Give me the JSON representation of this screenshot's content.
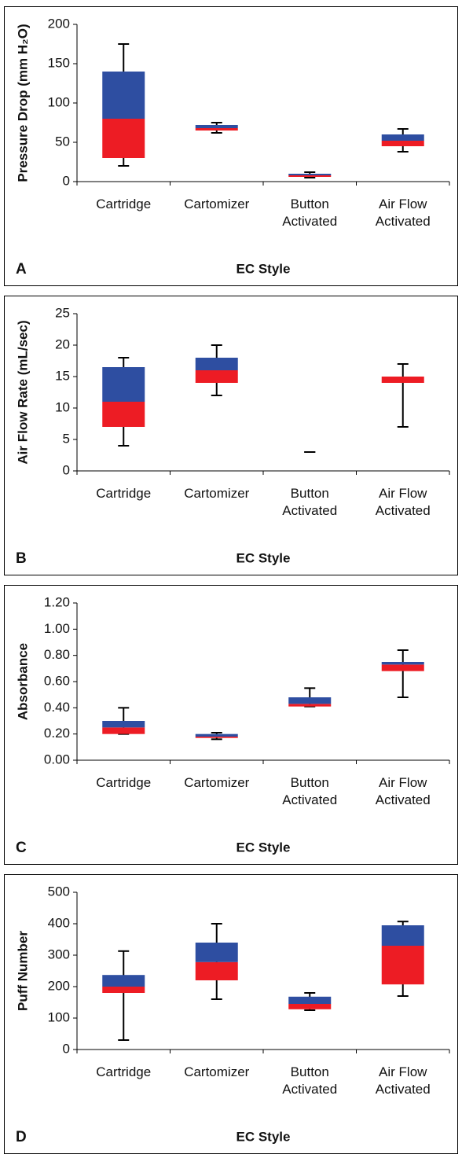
{
  "chart_data": [
    {
      "type": "box",
      "panel": "A",
      "ylabel": "Pressure Drop (mm H₂O)",
      "xlabel": "EC Style",
      "categories": [
        "Cartridge",
        "Cartomizer",
        "Button Activated",
        "Air Flow Activated"
      ],
      "min": [
        20,
        62,
        5,
        38
      ],
      "q1": [
        30,
        65,
        6,
        45
      ],
      "median": [
        80,
        68,
        8,
        52
      ],
      "q3": [
        140,
        72,
        10,
        60
      ],
      "max": [
        175,
        75,
        12,
        67
      ],
      "lower_color": "#ed1c24",
      "upper_color": "#2e4ea1",
      "ylim": [
        0,
        200
      ],
      "yticks": [
        0,
        50,
        100,
        150,
        200
      ]
    },
    {
      "type": "box",
      "panel": "B",
      "ylabel": "Air Flow Rate (mL/sec)",
      "xlabel": "EC Style",
      "categories": [
        "Cartridge",
        "Cartomizer",
        "Button Activated",
        "Air Flow Activated"
      ],
      "min": [
        4,
        12,
        3,
        7
      ],
      "q1": [
        7,
        14,
        3,
        14
      ],
      "median": [
        11,
        16,
        3,
        15
      ],
      "q3": [
        16.5,
        18,
        3,
        15
      ],
      "max": [
        18,
        20,
        3,
        17
      ],
      "lower_color": "#ed1c24",
      "upper_color": "#2e4ea1",
      "ylim": [
        0,
        25
      ],
      "yticks": [
        0,
        5,
        10,
        15,
        20,
        25
      ]
    },
    {
      "type": "box",
      "panel": "C",
      "ylabel": "Absorbance",
      "xlabel": "EC Style",
      "categories": [
        "Cartridge",
        "Cartomizer",
        "Button Activated",
        "Air Flow Activated"
      ],
      "min": [
        0.2,
        0.16,
        0.41,
        0.48
      ],
      "q1": [
        0.2,
        0.17,
        0.41,
        0.68
      ],
      "median": [
        0.25,
        0.18,
        0.43,
        0.73
      ],
      "q3": [
        0.3,
        0.2,
        0.48,
        0.75
      ],
      "max": [
        0.4,
        0.21,
        0.55,
        0.84
      ],
      "lower_color": "#ed1c24",
      "upper_color": "#2e4ea1",
      "ylim": [
        0,
        1.2
      ],
      "yticks": [
        {
          "value": 0,
          "label": "0.00"
        },
        {
          "value": 0.2,
          "label": "0.20"
        },
        {
          "value": 0.4,
          "label": "0.40"
        },
        {
          "value": 0.6,
          "label": "0.60"
        },
        {
          "value": 0.8,
          "label": "0.80"
        },
        {
          "value": 1,
          "label": "1.00"
        },
        {
          "value": 1.2,
          "label": "1.20"
        }
      ]
    },
    {
      "type": "box",
      "panel": "D",
      "ylabel": "Puff Number",
      "xlabel": "EC Style",
      "categories": [
        "Cartridge",
        "Cartomizer",
        "Button Activated",
        "Air Flow Activated"
      ],
      "min": [
        30,
        160,
        125,
        170
      ],
      "q1": [
        180,
        220,
        128,
        207
      ],
      "median": [
        200,
        278,
        145,
        330
      ],
      "q3": [
        237,
        340,
        168,
        395
      ],
      "max": [
        313,
        400,
        180,
        407
      ],
      "lower_color": "#ed1c24",
      "upper_color": "#2e4ea1",
      "ylim": [
        0,
        500
      ],
      "yticks": [
        0,
        100,
        200,
        300,
        400,
        500
      ]
    }
  ]
}
